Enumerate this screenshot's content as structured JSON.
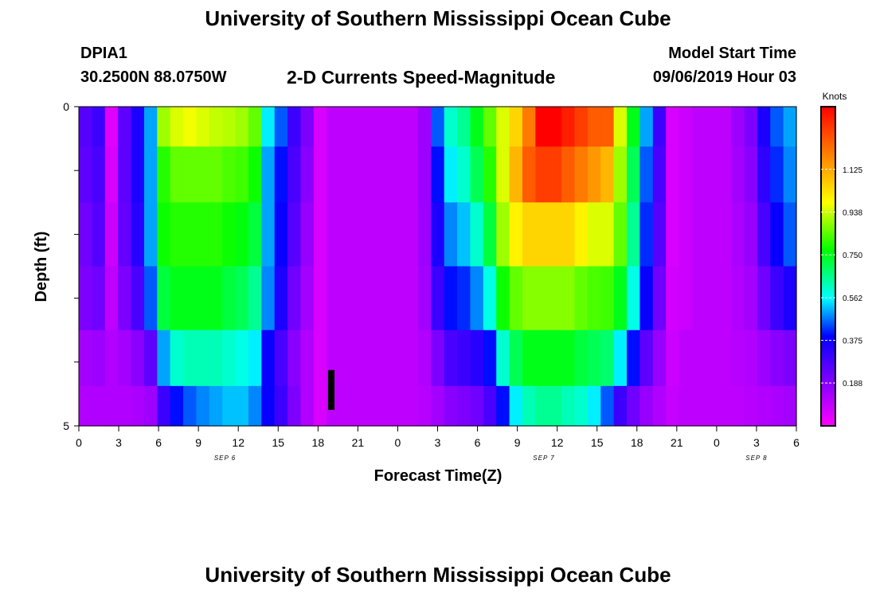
{
  "header": {
    "title": "University of Southern Mississippi Ocean Cube",
    "station_id": "DPIA1",
    "station_coords": "30.2500N 88.0750W",
    "subtitle": "2-D Currents Speed-Magnitude",
    "model_start_label": "Model Start Time",
    "model_start_value": "09/06/2019 Hour 03"
  },
  "footer": {
    "title": "University of Southern Mississippi Ocean Cube"
  },
  "chart_data": {
    "type": "heatmap",
    "title": "2-D Currents Speed-Magnitude",
    "xlabel": "Forecast Time(Z)",
    "ylabel": "Depth (ft)",
    "colorbar_label": "Knots",
    "x_hours_range": [
      0,
      54
    ],
    "x_tick_labels": [
      "0",
      "3",
      "6",
      "9",
      "12",
      "15",
      "18",
      "21",
      "0",
      "3",
      "6",
      "9",
      "12",
      "15",
      "18",
      "21",
      "0",
      "3",
      "6"
    ],
    "date_labels": [
      {
        "label": "SEP 6",
        "hour": 11
      },
      {
        "label": "SEP 7",
        "hour": 35
      },
      {
        "label": "SEP 8",
        "hour": 51
      }
    ],
    "y_range": [
      0,
      5
    ],
    "y_tick_labels": [
      "0",
      "5"
    ],
    "depth_levels": [
      0.25,
      1.0,
      2.0,
      3.0,
      4.0,
      4.75
    ],
    "colorbar_ticks": [
      "0.188",
      "0.375",
      "0.562",
      "0.750",
      "0.938",
      "1.125"
    ],
    "colorbar_range": [
      0.0,
      1.4
    ],
    "current_time_marker_hour": 19,
    "speed_knots_by_depth": [
      [
        0.26,
        0.3,
        0.05,
        0.25,
        0.35,
        0.5,
        0.9,
        0.95,
        0.97,
        0.95,
        0.93,
        0.92,
        0.9,
        0.85,
        0.55,
        0.45,
        0.3,
        0.2,
        0.06,
        0.1,
        0.1,
        0.1,
        0.1,
        0.1,
        0.1,
        0.1,
        0.15,
        0.45,
        0.6,
        0.65,
        0.75,
        0.85,
        0.95,
        1.05,
        1.2,
        1.4,
        1.4,
        1.35,
        1.3,
        1.25,
        1.25,
        0.95,
        0.75,
        0.5,
        0.3,
        0.06,
        0.08,
        0.1,
        0.1,
        0.1,
        0.15,
        0.2,
        0.35,
        0.45,
        0.5
      ],
      [
        0.25,
        0.28,
        0.06,
        0.25,
        0.35,
        0.5,
        0.8,
        0.85,
        0.85,
        0.85,
        0.85,
        0.83,
        0.82,
        0.78,
        0.5,
        0.4,
        0.28,
        0.18,
        0.06,
        0.1,
        0.1,
        0.1,
        0.1,
        0.1,
        0.1,
        0.1,
        0.15,
        0.4,
        0.55,
        0.6,
        0.7,
        0.8,
        0.95,
        1.1,
        1.25,
        1.3,
        1.3,
        1.25,
        1.2,
        1.15,
        1.1,
        0.9,
        0.7,
        0.45,
        0.28,
        0.06,
        0.08,
        0.1,
        0.1,
        0.1,
        0.14,
        0.18,
        0.32,
        0.42,
        0.48
      ],
      [
        0.22,
        0.26,
        0.08,
        0.24,
        0.33,
        0.5,
        0.78,
        0.8,
        0.8,
        0.8,
        0.8,
        0.78,
        0.76,
        0.72,
        0.5,
        0.38,
        0.26,
        0.16,
        0.06,
        0.1,
        0.1,
        0.1,
        0.1,
        0.1,
        0.1,
        0.1,
        0.15,
        0.35,
        0.48,
        0.52,
        0.6,
        0.72,
        0.9,
        1.0,
        1.05,
        1.05,
        1.05,
        1.05,
        1.0,
        0.95,
        0.95,
        0.85,
        0.65,
        0.42,
        0.26,
        0.06,
        0.08,
        0.1,
        0.1,
        0.1,
        0.13,
        0.16,
        0.28,
        0.38,
        0.45
      ],
      [
        0.2,
        0.22,
        0.1,
        0.2,
        0.28,
        0.45,
        0.72,
        0.75,
        0.75,
        0.75,
        0.75,
        0.72,
        0.7,
        0.65,
        0.48,
        0.35,
        0.22,
        0.14,
        0.06,
        0.1,
        0.1,
        0.1,
        0.1,
        0.1,
        0.1,
        0.1,
        0.14,
        0.3,
        0.4,
        0.42,
        0.48,
        0.58,
        0.78,
        0.85,
        0.88,
        0.88,
        0.88,
        0.88,
        0.85,
        0.83,
        0.82,
        0.75,
        0.58,
        0.38,
        0.22,
        0.07,
        0.08,
        0.1,
        0.1,
        0.1,
        0.12,
        0.14,
        0.22,
        0.3,
        0.35
      ],
      [
        0.14,
        0.15,
        0.12,
        0.14,
        0.18,
        0.25,
        0.5,
        0.6,
        0.62,
        0.62,
        0.62,
        0.6,
        0.58,
        0.55,
        0.38,
        0.28,
        0.18,
        0.12,
        0.06,
        0.1,
        0.1,
        0.1,
        0.1,
        0.1,
        0.1,
        0.1,
        0.12,
        0.2,
        0.28,
        0.3,
        0.33,
        0.4,
        0.6,
        0.7,
        0.75,
        0.75,
        0.75,
        0.75,
        0.72,
        0.7,
        0.68,
        0.55,
        0.4,
        0.25,
        0.16,
        0.08,
        0.1,
        0.1,
        0.1,
        0.1,
        0.11,
        0.12,
        0.15,
        0.18,
        0.2
      ],
      [
        0.12,
        0.12,
        0.12,
        0.12,
        0.13,
        0.15,
        0.3,
        0.4,
        0.45,
        0.48,
        0.5,
        0.52,
        0.52,
        0.48,
        0.38,
        0.3,
        0.2,
        0.12,
        0.06,
        0.1,
        0.1,
        0.1,
        0.1,
        0.1,
        0.1,
        0.1,
        0.11,
        0.14,
        0.18,
        0.2,
        0.22,
        0.28,
        0.4,
        0.55,
        0.62,
        0.65,
        0.65,
        0.62,
        0.6,
        0.55,
        0.45,
        0.3,
        0.22,
        0.16,
        0.12,
        0.09,
        0.1,
        0.1,
        0.1,
        0.1,
        0.1,
        0.11,
        0.12,
        0.13,
        0.14
      ]
    ]
  }
}
